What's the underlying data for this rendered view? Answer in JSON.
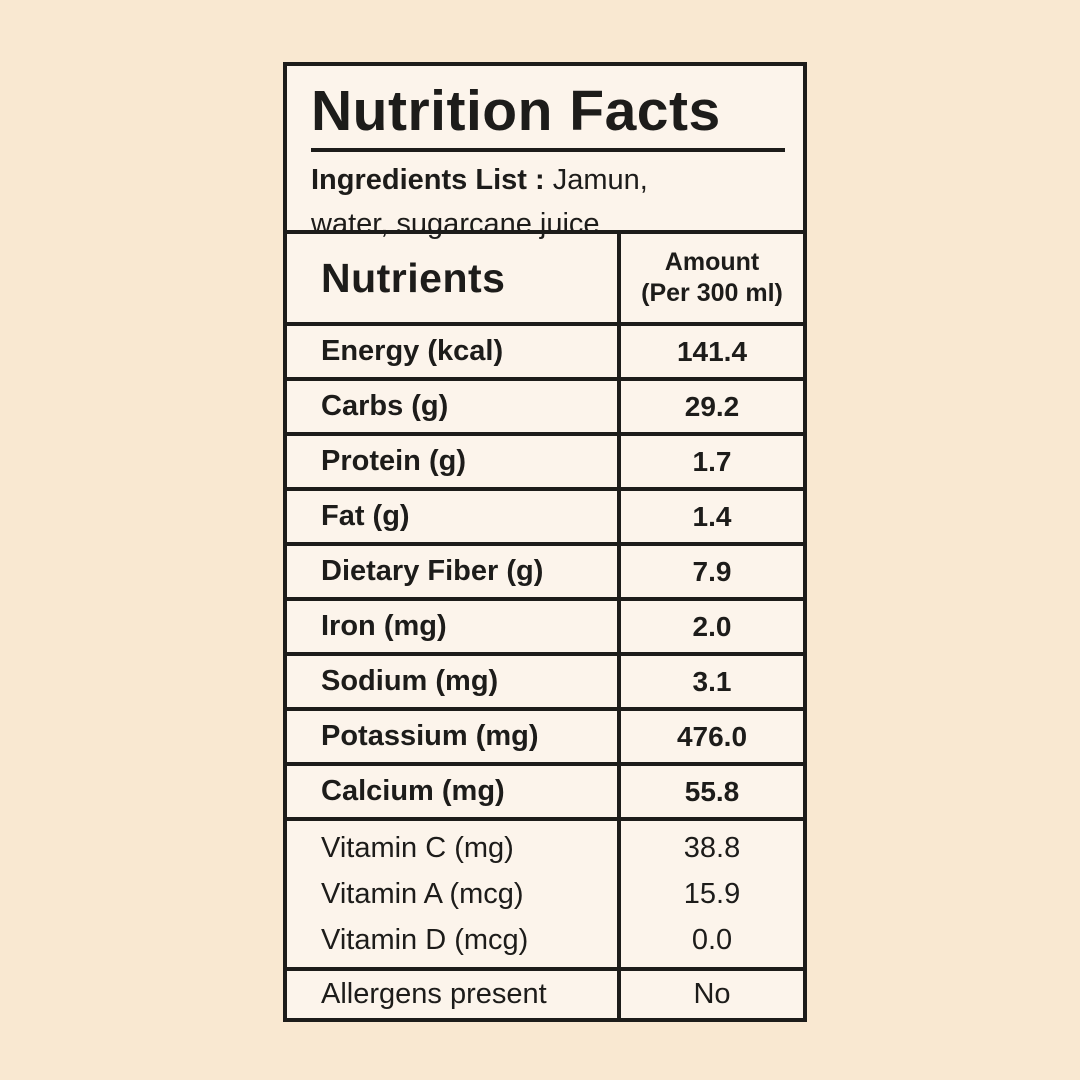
{
  "card": {
    "title": "Nutrition Facts",
    "ingredients": {
      "label": "Ingredients List :",
      "line1_rest": " Jamun,",
      "line2": "water, sugarcane juice"
    }
  },
  "table": {
    "header": {
      "nutrients": "Nutrients",
      "amount_line1": "Amount",
      "amount_line2": "(Per 300 ml)"
    },
    "rows": [
      {
        "label": "Energy (kcal)",
        "value": "141.4"
      },
      {
        "label": "Carbs (g)",
        "value": "29.2"
      },
      {
        "label": "Protein (g)",
        "value": "1.7"
      },
      {
        "label": "Fat (g)",
        "value": "1.4"
      },
      {
        "label": "Dietary Fiber (g)",
        "value": "7.9"
      },
      {
        "label": "Iron (mg)",
        "value": "2.0"
      },
      {
        "label": "Sodium (mg)",
        "value": "3.1"
      },
      {
        "label": "Potassium (mg)",
        "value": "476.0"
      },
      {
        "label": "Calcium (mg)",
        "value": "55.8"
      }
    ],
    "vitamins": [
      {
        "label": "Vitamin C (mg)",
        "value": "38.8"
      },
      {
        "label": "Vitamin A (mcg)",
        "value": "15.9"
      },
      {
        "label": "Vitamin D (mcg)",
        "value": "0.0"
      }
    ],
    "allergens": {
      "label": "Allergens present",
      "value": "No"
    }
  },
  "colors": {
    "page_background": "#f9e8d1",
    "card_background": "#fcf4eb",
    "border": "#1d1c1a",
    "text": "#1d1c1a"
  }
}
